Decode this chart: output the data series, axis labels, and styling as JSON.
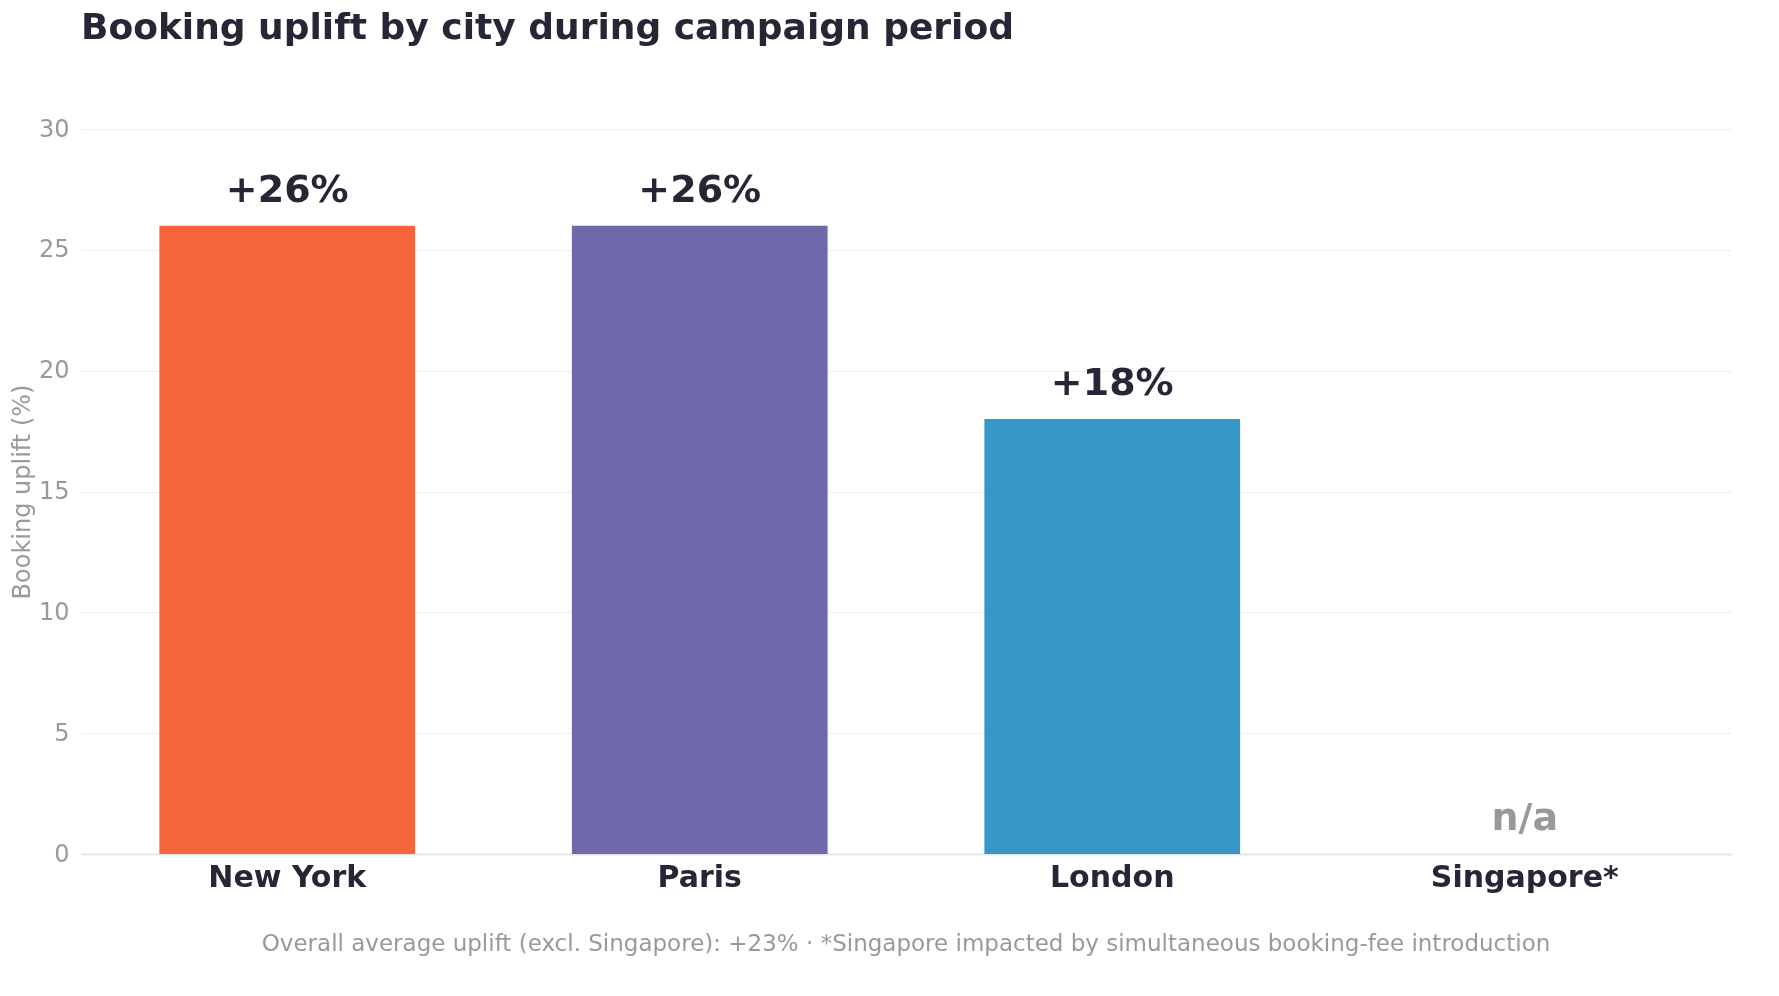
{
  "chart_data": {
    "type": "bar",
    "title": "Booking uplift by city during campaign period",
    "ylabel": "Booking uplift (%)",
    "categories": [
      "New York",
      "Paris",
      "London",
      "Singapore*"
    ],
    "values": [
      26,
      26,
      18,
      null
    ],
    "colors": [
      "#f6643a",
      "#6e69ab",
      "#3798c8",
      "#999999"
    ],
    "value_labels": [
      "+26%",
      "+26%",
      "+18%",
      "n/a"
    ],
    "ylim": [
      0,
      30
    ],
    "yticks": [
      0,
      5,
      10,
      15,
      20,
      25,
      30
    ],
    "grid": "y",
    "legend": false,
    "annotations": [
      "Overall average uplift (excl. Singapore): +23%  ·  *Singapore impacted by simultaneous booking-fee introduction"
    ]
  }
}
